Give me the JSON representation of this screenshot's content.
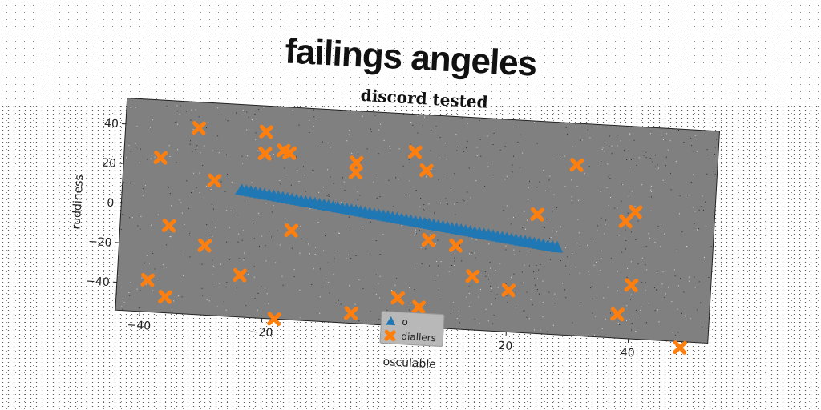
{
  "banner_title": "failings angeles",
  "chart_data": {
    "type": "scatter",
    "title": "discord tested",
    "xlabel": "osculable",
    "ylabel": "ruddiness",
    "xlim": [
      -44,
      53
    ],
    "ylim": [
      -54,
      53
    ],
    "xticks": [
      -40,
      -20,
      0,
      20,
      40
    ],
    "yticks": [
      -40,
      -20,
      0,
      20,
      40
    ],
    "xtick_labels": [
      "−40",
      "−20",
      "0",
      "20",
      "40"
    ],
    "ytick_labels": [
      "−40",
      "−20",
      "0",
      "20",
      "40"
    ],
    "grid": false,
    "legend_position": "lower center",
    "plot_bg": "#808080",
    "series": [
      {
        "name": "o",
        "marker": "triangle",
        "color": "#1f77b4",
        "x_start": -24.5,
        "x_end": 27.5,
        "y_start": 10,
        "y_end": -10,
        "count": 70
      },
      {
        "name": "diallers",
        "marker": "x",
        "color": "#ff7f0e",
        "points": [
          [
            -32,
            40
          ],
          [
            -21,
            40
          ],
          [
            -21,
            29
          ],
          [
            -18,
            31
          ],
          [
            -17,
            30
          ],
          [
            -38,
            24
          ],
          [
            -29,
            14
          ],
          [
            -6,
            27
          ],
          [
            -6,
            22
          ],
          [
            3.5,
            34
          ],
          [
            5.5,
            25
          ],
          [
            30,
            32
          ],
          [
            24,
            6
          ],
          [
            40,
            10
          ],
          [
            38.5,
            5
          ],
          [
            -36,
            -10
          ],
          [
            -16,
            -9
          ],
          [
            6.5,
            -10
          ],
          [
            11,
            -12
          ],
          [
            -30,
            -19
          ],
          [
            14,
            -27
          ],
          [
            40,
            -27
          ],
          [
            20,
            -33
          ],
          [
            -24,
            -33
          ],
          [
            -39,
            -38
          ],
          [
            -36,
            -46
          ],
          [
            2,
            -40
          ],
          [
            5.5,
            -44
          ],
          [
            -5.5,
            -49
          ],
          [
            -18,
            -54
          ],
          [
            38,
            -42
          ],
          [
            48.5,
            -57
          ]
        ]
      }
    ]
  }
}
